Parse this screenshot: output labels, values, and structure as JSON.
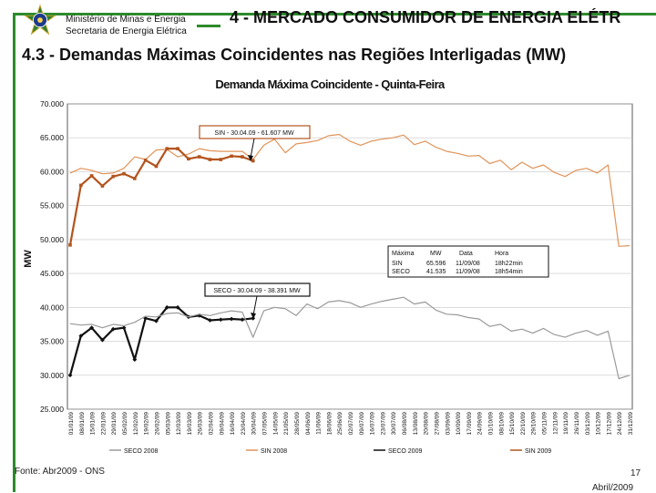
{
  "header": {
    "ministry_line1": "Ministério de Minas e Energia",
    "ministry_line2": "Secretaria de Energia Elétrica",
    "section_title": "4 - MERCADO CONSUMIDOR DE ENERGIA ELÉTR"
  },
  "subtitle": "4.3 - Demandas Máximas Coincidentes nas Regiões Interligadas (MW)",
  "footer": {
    "source": "Fonte: Abr2009 - ONS",
    "page": "17",
    "date": "Abril/2009"
  },
  "colors": {
    "frame": "#2d8a2d",
    "sin_2009": "#b3541e",
    "sin_2008": "#e0945a",
    "seco_2009": "#111111",
    "seco_2008": "#9a9a9a"
  },
  "chart_data": {
    "type": "line",
    "title": "Demanda Máxima Coincidente - Quinta-Feira",
    "ylabel": "MW",
    "xlabel": "",
    "ylim": [
      25000,
      70000
    ],
    "yticks": [
      "70.000",
      "65.000",
      "60.000",
      "55.000",
      "50.000",
      "45.000",
      "40.000",
      "35.000",
      "30.000",
      "25.000"
    ],
    "ytick_values": [
      70000,
      65000,
      60000,
      55000,
      50000,
      45000,
      40000,
      35000,
      30000,
      25000
    ],
    "categories": [
      "01/01/09",
      "08/01/09",
      "15/01/09",
      "22/01/09",
      "29/01/09",
      "05/02/09",
      "12/02/09",
      "19/02/09",
      "26/02/09",
      "05/03/09",
      "12/03/09",
      "19/03/09",
      "26/03/09",
      "02/04/09",
      "09/04/09",
      "16/04/09",
      "23/04/09",
      "30/04/09",
      "07/05/09",
      "14/05/09",
      "21/05/09",
      "28/05/09",
      "04/06/09",
      "11/06/09",
      "18/06/09",
      "25/06/09",
      "02/07/09",
      "09/07/09",
      "16/07/09",
      "23/07/09",
      "30/07/09",
      "06/08/09",
      "13/08/09",
      "20/08/09",
      "27/08/09",
      "03/09/09",
      "10/09/09",
      "17/09/09",
      "24/09/09",
      "01/10/09",
      "08/10/09",
      "15/10/09",
      "22/10/09",
      "29/10/09",
      "05/11/09",
      "12/11/09",
      "19/11/09",
      "26/11/09",
      "03/12/09",
      "10/12/09",
      "17/12/09",
      "24/12/09",
      "31/12/09"
    ],
    "series": [
      {
        "name": "SECO 2009",
        "values": [
          30000,
          35800,
          37000,
          35200,
          36800,
          37000,
          32300,
          38400,
          38000,
          40000,
          40000,
          38600,
          38800,
          38100,
          38200,
          38300,
          38200,
          38391,
          null,
          null,
          null,
          null,
          null,
          null,
          null,
          null,
          null,
          null,
          null,
          null,
          null,
          null,
          null,
          null,
          null,
          null,
          null,
          null,
          null,
          null,
          null,
          null,
          null,
          null,
          null,
          null,
          null,
          null,
          null,
          null,
          null,
          null,
          null
        ]
      },
      {
        "name": "SIN 2008",
        "values": [
          59800,
          60500,
          60200,
          59700,
          59800,
          60500,
          62200,
          61800,
          63200,
          63300,
          62200,
          62600,
          63400,
          63100,
          63000,
          63000,
          63000,
          61800,
          63900,
          64800,
          62800,
          64100,
          64300,
          64600,
          65300,
          65500,
          64500,
          63900,
          64500,
          64800,
          65000,
          65400,
          64000,
          64500,
          63600,
          63000,
          62700,
          62300,
          62400,
          61200,
          61700,
          60300,
          61400,
          60500,
          61000,
          59900,
          59300,
          60200,
          60500,
          59800,
          61000,
          49000,
          49100
        ]
      },
      {
        "name": "SIN 2009",
        "values": [
          49200,
          58000,
          59400,
          57900,
          59300,
          59700,
          59000,
          61700,
          60800,
          63400,
          63400,
          61900,
          62200,
          61800,
          61800,
          62300,
          62200,
          61607,
          null,
          null,
          null,
          null,
          null,
          null,
          null,
          null,
          null,
          null,
          null,
          null,
          null,
          null,
          null,
          null,
          null,
          null,
          null,
          null,
          null,
          null,
          null,
          null,
          null,
          null,
          null,
          null,
          null,
          null,
          null,
          null,
          null,
          null,
          null
        ]
      },
      {
        "name": "SECO 2008",
        "values": [
          37600,
          37400,
          37500,
          37000,
          37500,
          37300,
          37800,
          38700,
          38600,
          39100,
          39200,
          38600,
          39000,
          38800,
          39200,
          39500,
          39300,
          35600,
          39500,
          40000,
          39800,
          38800,
          40500,
          39800,
          40800,
          41000,
          40700,
          40000,
          40500,
          40900,
          41200,
          41500,
          40500,
          40800,
          39600,
          39000,
          38900,
          38500,
          38300,
          37200,
          37500,
          36500,
          36800,
          36200,
          36900,
          36000,
          35600,
          36200,
          36600,
          35900,
          36500,
          29500,
          30000
        ]
      }
    ],
    "legend": [
      "SECO 2008",
      "SIN 2008",
      "SECO 2009",
      "SIN 2009"
    ],
    "legend_position": "bottom",
    "annotations": {
      "sin": "SIN - 30.04.09 - 61.607 MW",
      "seco": "SECO - 30.04.09 - 38.391 MW"
    },
    "max_table": {
      "headers": [
        "Máxima",
        "MW",
        "Data",
        "Hora"
      ],
      "rows": [
        [
          "SIN",
          "65.596",
          "11/09/08",
          "18h22min"
        ],
        [
          "SECO",
          "41.535",
          "11/09/08",
          "18h54min"
        ]
      ]
    }
  }
}
